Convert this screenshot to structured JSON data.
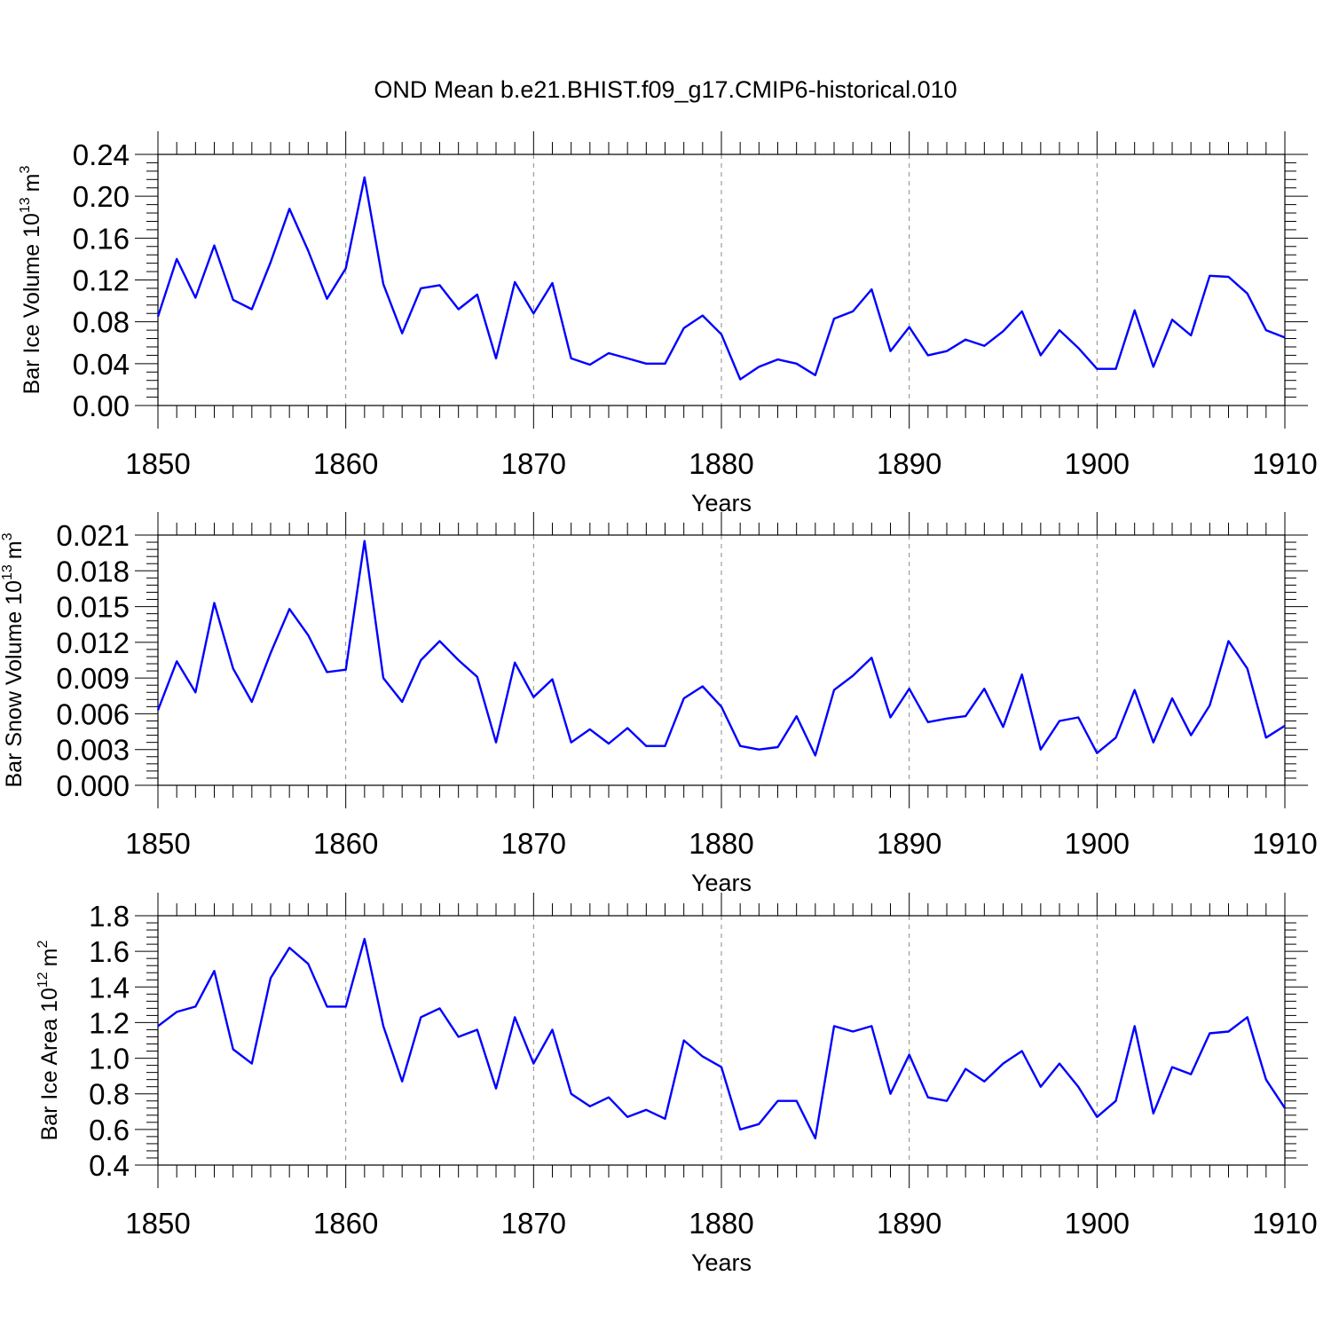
{
  "title": "OND Mean b.e21.BHIST.f09_g17.CMIP6-historical.010",
  "series_color": "#0000ff",
  "chart_data": [
    {
      "type": "line",
      "ylabel": "Bar Ice Volume 10",
      "ylabel_sup": "13",
      "ylabel_unit": "m",
      "ylabel_unit_sup": "3",
      "xlabel": "Years",
      "xlim": [
        1850,
        1910
      ],
      "ylim": [
        0.0,
        0.24
      ],
      "yticks": [
        "0.00",
        "0.04",
        "0.08",
        "0.12",
        "0.16",
        "0.20",
        "0.24"
      ],
      "xticks": [
        "1850",
        "1860",
        "1870",
        "1880",
        "1890",
        "1900",
        "1910"
      ],
      "x_start": 1850,
      "values": [
        0.085,
        0.14,
        0.103,
        0.153,
        0.101,
        0.092,
        0.137,
        0.188,
        0.148,
        0.102,
        0.131,
        0.218,
        0.116,
        0.069,
        0.112,
        0.115,
        0.092,
        0.106,
        0.045,
        0.118,
        0.088,
        0.117,
        0.045,
        0.039,
        0.05,
        0.045,
        0.04,
        0.04,
        0.074,
        0.086,
        0.068,
        0.025,
        0.037,
        0.044,
        0.04,
        0.029,
        0.083,
        0.09,
        0.111,
        0.052,
        0.075,
        0.048,
        0.052,
        0.063,
        0.057,
        0.071,
        0.09,
        0.048,
        0.072,
        0.055,
        0.035,
        0.035,
        0.091,
        0.037,
        0.082,
        0.067,
        0.124,
        0.123,
        0.107,
        0.072,
        0.065
      ]
    },
    {
      "type": "line",
      "ylabel": "Bar Snow Volume 10",
      "ylabel_sup": "13",
      "ylabel_unit": "m",
      "ylabel_unit_sup": "3",
      "xlabel": "Years",
      "xlim": [
        1850,
        1910
      ],
      "ylim": [
        0.0,
        0.021
      ],
      "yticks": [
        "0.000",
        "0.003",
        "0.006",
        "0.009",
        "0.012",
        "0.015",
        "0.018",
        "0.021"
      ],
      "xticks": [
        "1850",
        "1860",
        "1870",
        "1880",
        "1890",
        "1900",
        "1910"
      ],
      "x_start": 1850,
      "values": [
        0.0063,
        0.0104,
        0.0078,
        0.0153,
        0.0098,
        0.007,
        0.0111,
        0.0148,
        0.0126,
        0.0095,
        0.0097,
        0.0205,
        0.009,
        0.007,
        0.0105,
        0.0121,
        0.0105,
        0.0091,
        0.0036,
        0.0103,
        0.0074,
        0.0089,
        0.0036,
        0.0047,
        0.0035,
        0.0048,
        0.0033,
        0.0033,
        0.0073,
        0.0083,
        0.0066,
        0.0033,
        0.003,
        0.0032,
        0.0058,
        0.0025,
        0.008,
        0.0092,
        0.0107,
        0.0057,
        0.0081,
        0.0053,
        0.0056,
        0.0058,
        0.0081,
        0.0049,
        0.0093,
        0.003,
        0.0054,
        0.0057,
        0.0027,
        0.004,
        0.008,
        0.0036,
        0.0073,
        0.0042,
        0.0067,
        0.0121,
        0.0098,
        0.004,
        0.005
      ]
    },
    {
      "type": "line",
      "ylabel": "Bar Ice Area 10",
      "ylabel_sup": "12",
      "ylabel_unit": "m",
      "ylabel_unit_sup": "2",
      "xlabel": "Years",
      "xlim": [
        1850,
        1910
      ],
      "ylim": [
        0.4,
        1.8
      ],
      "yticks": [
        "0.4",
        "0.6",
        "0.8",
        "1.0",
        "1.2",
        "1.4",
        "1.6",
        "1.8"
      ],
      "xticks": [
        "1850",
        "1860",
        "1870",
        "1880",
        "1890",
        "1900",
        "1910"
      ],
      "x_start": 1850,
      "values": [
        1.18,
        1.26,
        1.29,
        1.49,
        1.05,
        0.97,
        1.45,
        1.62,
        1.53,
        1.29,
        1.29,
        1.67,
        1.18,
        0.87,
        1.23,
        1.28,
        1.12,
        1.16,
        0.83,
        1.23,
        0.97,
        1.16,
        0.8,
        0.73,
        0.78,
        0.67,
        0.71,
        0.66,
        1.1,
        1.01,
        0.95,
        0.6,
        0.63,
        0.76,
        0.76,
        0.55,
        1.18,
        1.15,
        1.18,
        0.8,
        1.02,
        0.78,
        0.76,
        0.94,
        0.87,
        0.97,
        1.04,
        0.84,
        0.97,
        0.84,
        0.67,
        0.76,
        1.18,
        0.69,
        0.95,
        0.91,
        1.14,
        1.15,
        1.23,
        0.88,
        0.72
      ]
    }
  ]
}
